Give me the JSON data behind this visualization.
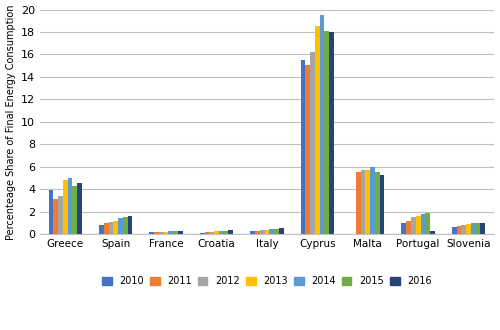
{
  "categories": [
    "Greece",
    "Spain",
    "France",
    "Croatia",
    "Italy",
    "Cyprus",
    "Malta",
    "Portugal",
    "Slovenia"
  ],
  "years": [
    "2010",
    "2011",
    "2012",
    "2013",
    "2014",
    "2015",
    "2016"
  ],
  "colors": [
    "#4472C4",
    "#ED7D31",
    "#A5A5A5",
    "#FFC000",
    "#5B9BD5",
    "#70AD47",
    "#264478"
  ],
  "data": {
    "Greece": [
      3.9,
      3.1,
      3.4,
      4.8,
      5.0,
      4.3,
      4.5
    ],
    "Spain": [
      0.8,
      1.0,
      1.1,
      1.2,
      1.4,
      1.5,
      1.6
    ],
    "France": [
      0.15,
      0.15,
      0.2,
      0.2,
      0.25,
      0.25,
      0.3
    ],
    "Croatia": [
      0.1,
      0.15,
      0.2,
      0.25,
      0.3,
      0.3,
      0.35
    ],
    "Italy": [
      0.25,
      0.3,
      0.35,
      0.4,
      0.45,
      0.45,
      0.5
    ],
    "Cyprus": [
      15.5,
      15.1,
      16.2,
      18.5,
      19.5,
      18.1,
      18.0
    ],
    "Malta": [
      0.0,
      5.5,
      5.7,
      5.7,
      6.0,
      5.5,
      5.3
    ],
    "Portugal": [
      1.0,
      1.2,
      1.5,
      1.6,
      1.8,
      1.9,
      0.3
    ],
    "Slovenia": [
      0.6,
      0.7,
      0.8,
      0.9,
      1.0,
      1.0,
      1.0
    ]
  },
  "ylabel": "Percenteage Share of Final Energy Consumption",
  "ylim": [
    0,
    20
  ],
  "yticks": [
    0,
    2,
    4,
    6,
    8,
    10,
    12,
    14,
    16,
    18,
    20
  ],
  "bar_width": 0.095,
  "background_color": "#FFFFFF",
  "grid_color": "#C0C0C0"
}
